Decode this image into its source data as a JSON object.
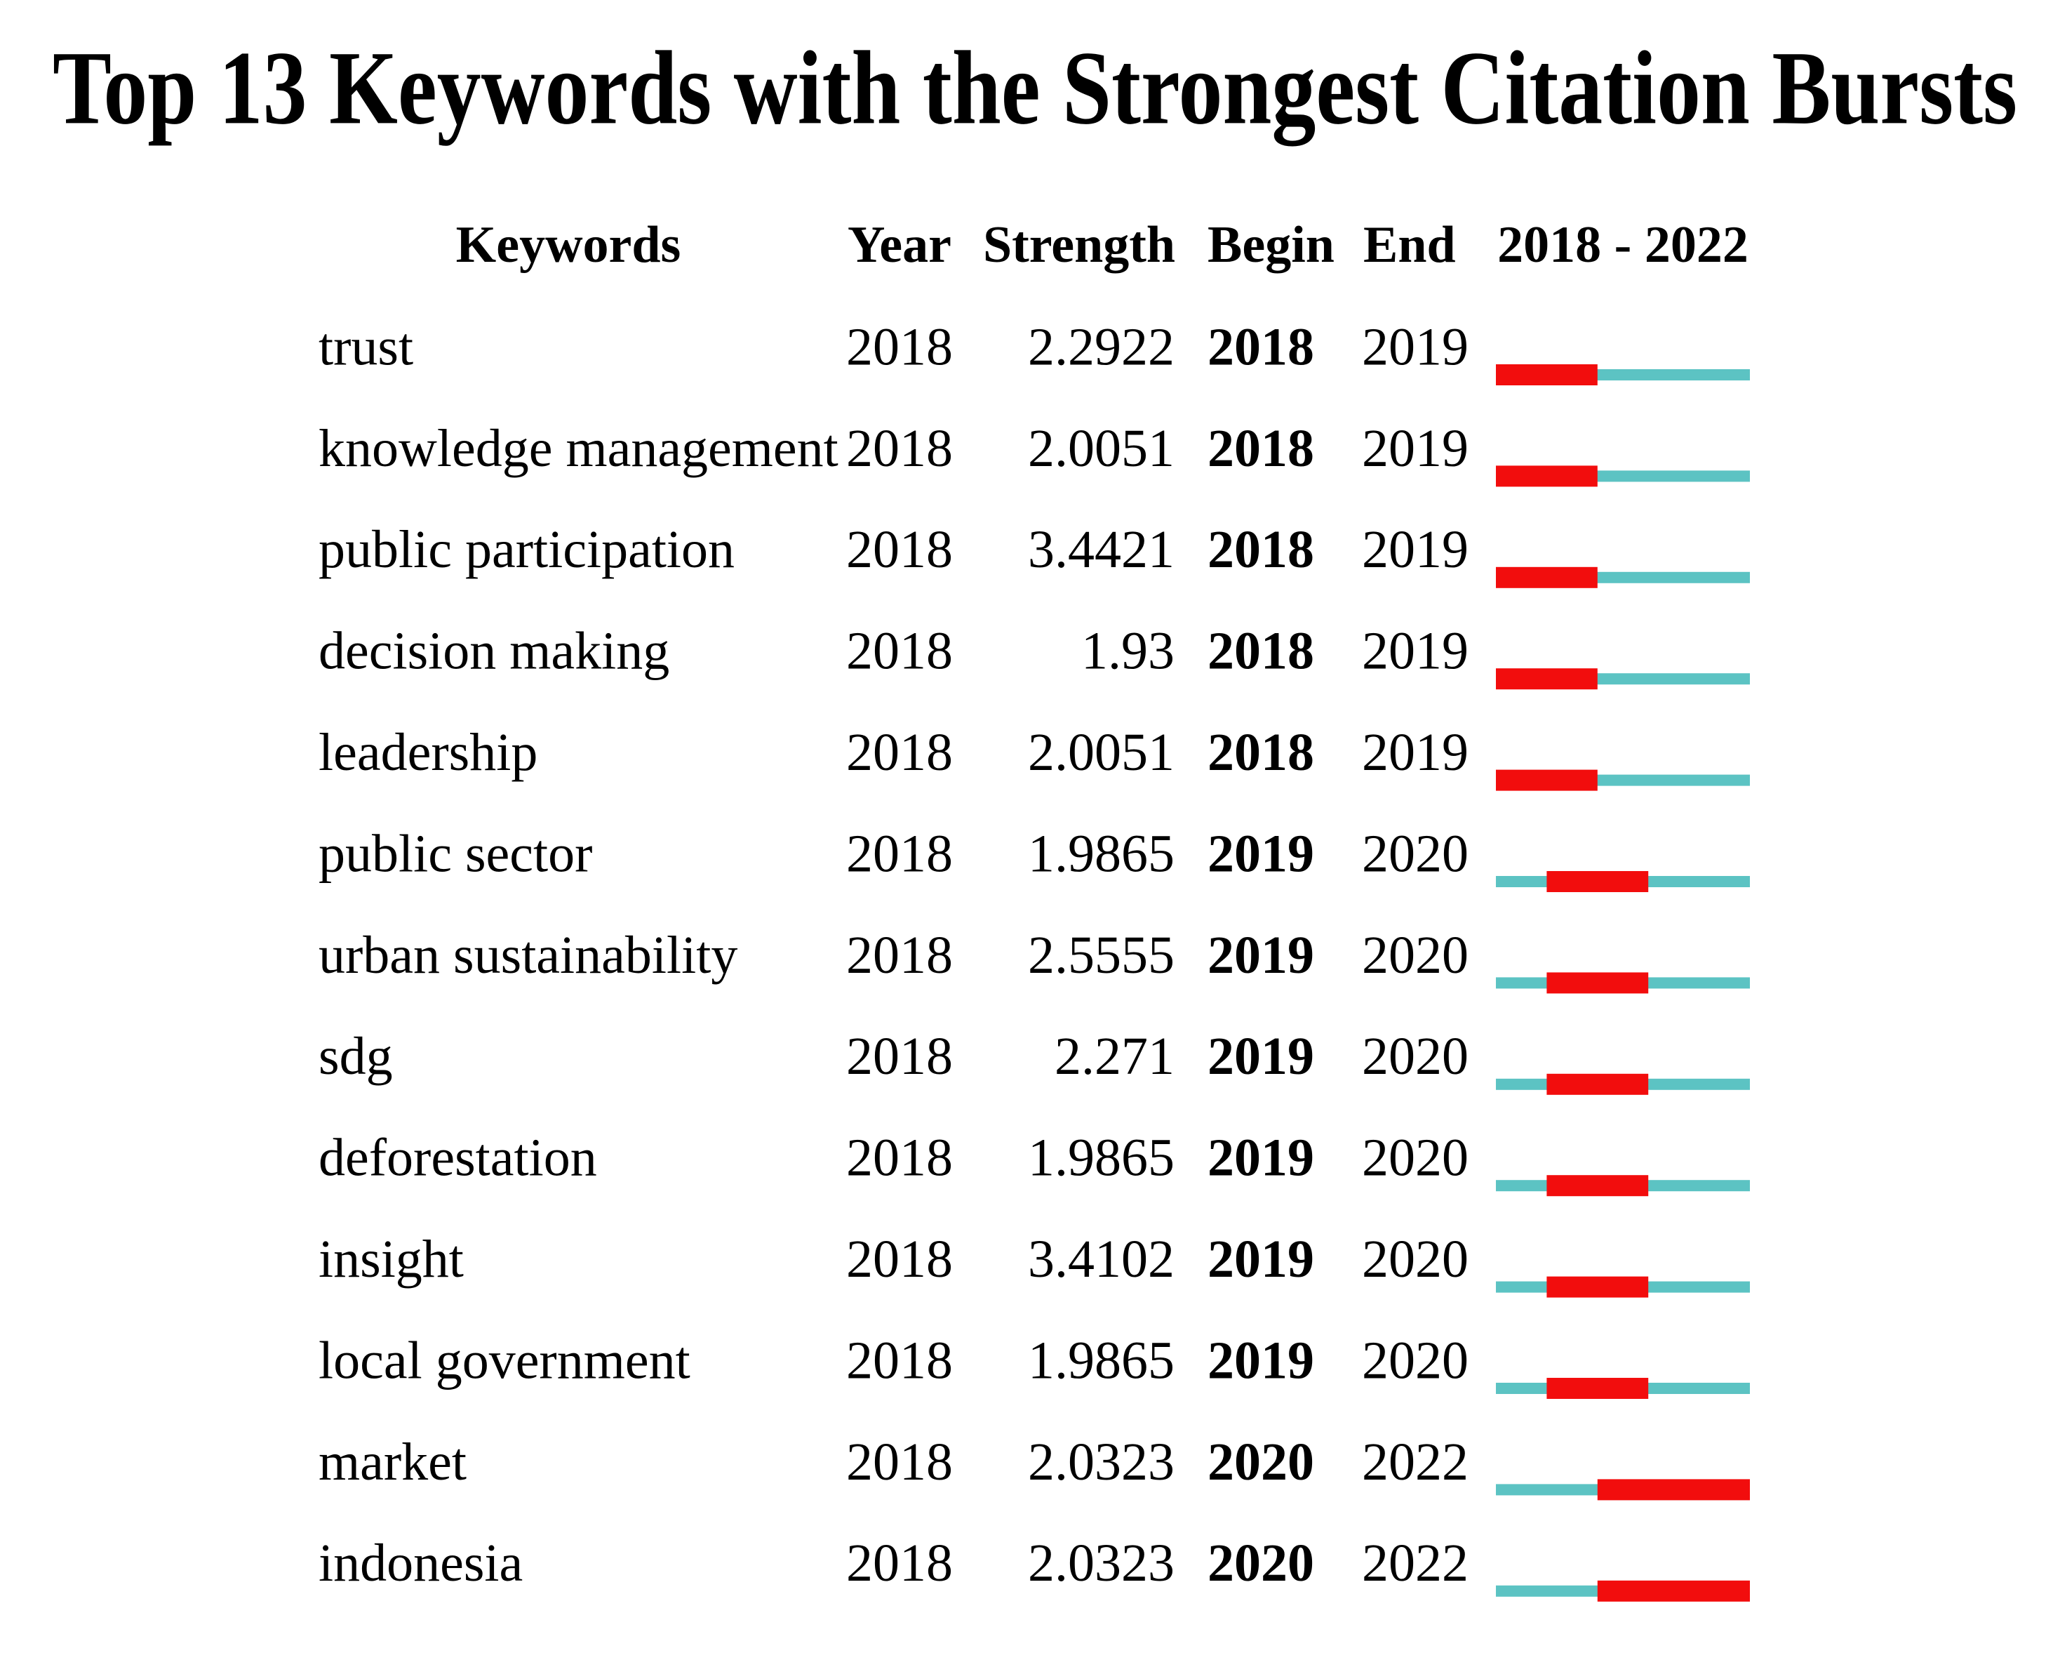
{
  "title": "Top 13 Keywords with the Strongest Citation Bursts",
  "columns": [
    "Keywords",
    "Year",
    "Strength",
    "Begin",
    "End"
  ],
  "timeline": {
    "label": "2018 - 2022",
    "start": 2018,
    "end": 2022
  },
  "rows": [
    [
      "trust",
      2018,
      2.2922,
      2018,
      2019
    ],
    [
      "knowledge management",
      2018,
      2.0051,
      2018,
      2019
    ],
    [
      "public participation",
      2018,
      3.4421,
      2018,
      2019
    ],
    [
      "decision making",
      2018,
      1.93,
      2018,
      2019
    ],
    [
      "leadership",
      2018,
      2.0051,
      2018,
      2019
    ],
    [
      "public sector",
      2018,
      1.9865,
      2019,
      2020
    ],
    [
      "urban sustainability",
      2018,
      2.5555,
      2019,
      2020
    ],
    [
      "sdg",
      2018,
      2.271,
      2019,
      2020
    ],
    [
      "deforestation",
      2018,
      1.9865,
      2019,
      2020
    ],
    [
      "insight",
      2018,
      3.4102,
      2019,
      2020
    ],
    [
      "local government",
      2018,
      1.9865,
      2019,
      2020
    ],
    [
      "market",
      2018,
      2.0323,
      2020,
      2022
    ],
    [
      "indonesia",
      2018,
      2.0323,
      2020,
      2022
    ]
  ]
}
